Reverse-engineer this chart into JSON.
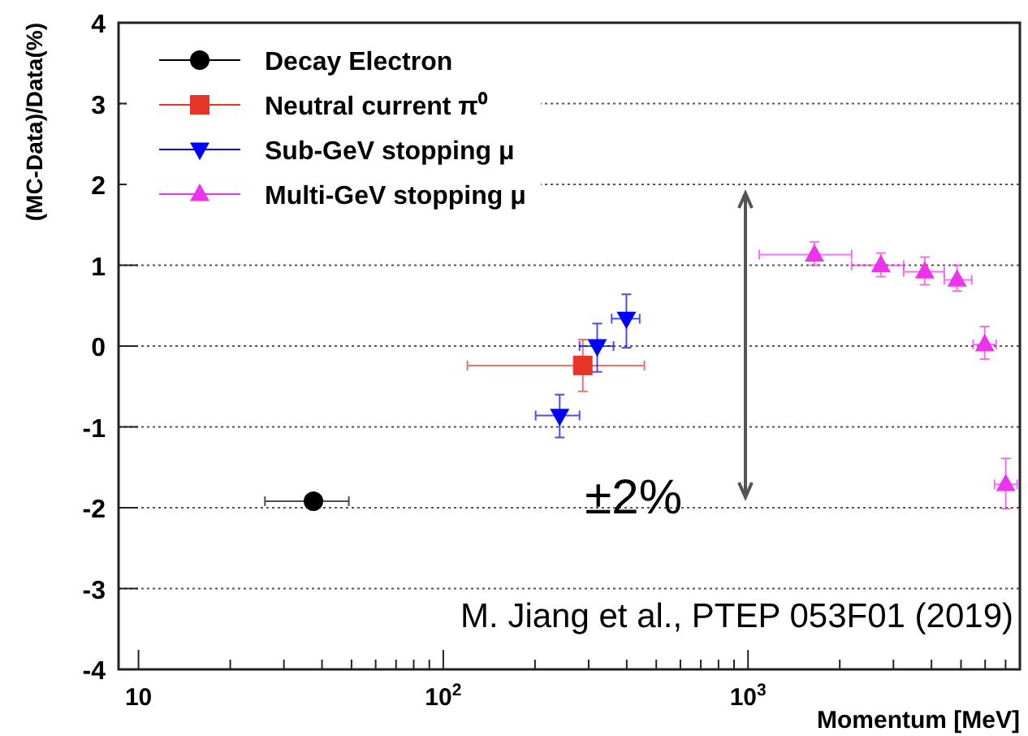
{
  "chart_data": {
    "type": "scatter",
    "xlabel": "Momentum [MeV]",
    "ylabel": "(MC-Data)/Data(%)",
    "log": "x",
    "xlim": [
      8.6,
      7800
    ],
    "ylim": [
      -4,
      4
    ],
    "xticks": [
      {
        "value": 10,
        "label": "10"
      },
      {
        "value": 20,
        "label": null
      },
      {
        "value": 30,
        "label": null
      },
      {
        "value": 40,
        "label": null
      },
      {
        "value": 50,
        "label": null
      },
      {
        "value": 60,
        "label": null
      },
      {
        "value": 70,
        "label": null
      },
      {
        "value": 80,
        "label": null
      },
      {
        "value": 90,
        "label": null
      },
      {
        "value": 100,
        "label": "10$^{2}$"
      },
      {
        "value": 200,
        "label": null
      },
      {
        "value": 300,
        "label": null
      },
      {
        "value": 400,
        "label": null
      },
      {
        "value": 500,
        "label": null
      },
      {
        "value": 600,
        "label": null
      },
      {
        "value": 700,
        "label": null
      },
      {
        "value": 800,
        "label": null
      },
      {
        "value": 900,
        "label": null
      },
      {
        "value": 1000,
        "label": "10$^{3}$"
      },
      {
        "value": 2000,
        "label": null
      },
      {
        "value": 3000,
        "label": null
      },
      {
        "value": 4000,
        "label": null
      },
      {
        "value": 5000,
        "label": null
      },
      {
        "value": 6000,
        "label": null
      },
      {
        "value": 7000,
        "label": null
      }
    ],
    "yticks": [
      -4,
      -3,
      -2,
      -1,
      0,
      1,
      2,
      3,
      4
    ],
    "grid": "y",
    "legend": "top left",
    "series": [
      {
        "name": "Decay Electron",
        "color": "#000000",
        "marker": "circle",
        "x": [
          37.5
        ],
        "values": [
          -1.92
        ],
        "xerrors": [
          [
            26,
            49
          ]
        ]
      },
      {
        "name": "Neutral current π⁰",
        "color": "#e8352a",
        "marker": "square",
        "x": [
          287
        ],
        "values": [
          -0.24
        ],
        "errors": [
          [
            -0.56,
            0.08
          ]
        ],
        "xerrors": [
          [
            120,
            457
          ]
        ]
      },
      {
        "name": "Sub-GeV stopping μ",
        "color": "#0000ff",
        "marker": "triangle-down",
        "x": [
          241,
          320,
          399
        ],
        "values": [
          -0.86,
          0.0,
          0.34
        ],
        "errors": [
          [
            -1.13,
            -0.6
          ],
          [
            -0.32,
            0.28
          ],
          [
            -0.02,
            0.64
          ]
        ],
        "xerrors": [
          [
            201,
            280
          ],
          [
            280,
            362
          ],
          [
            357,
            441
          ]
        ]
      },
      {
        "name": "Multi-GeV stopping μ",
        "color": "#ee33ee",
        "marker": "triangle",
        "x": [
          1652,
          2729,
          3802,
          4853,
          5980,
          7010
        ],
        "values": [
          1.13,
          1.0,
          0.92,
          0.82,
          0.02,
          -1.71
        ],
        "errors": [
          [
            1.0,
            1.29
          ],
          [
            0.86,
            1.15
          ],
          [
            0.76,
            1.1
          ],
          [
            0.68,
            1.0
          ],
          [
            -0.16,
            0.24
          ],
          [
            -2.01,
            -1.39
          ]
        ],
        "xerrors": [
          [
            1089,
            2188
          ],
          [
            2188,
            3243
          ],
          [
            3243,
            4406
          ],
          [
            4406,
            5420
          ],
          [
            5480,
            6520
          ],
          [
            6440,
            7640
          ]
        ]
      }
    ],
    "annotations": [
      "±2%",
      "M. Jiang et al., PTEP 053F01 (2019)"
    ]
  }
}
